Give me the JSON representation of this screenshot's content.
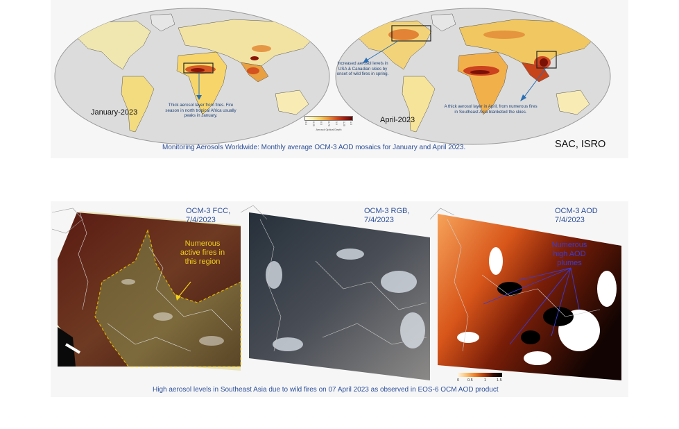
{
  "top_figure": {
    "map_labels": [
      "January-2023",
      "April-2023"
    ],
    "annotations": [
      "Thick aerosol layer from fires. Fire season in north tropical Africa usually peaks in January.",
      "Increased aerosol levels in USA & Canadian skies by onset of wild fires in spring.",
      "A thick aerosol layer in April, from numerous fires in Southeast Asia blanketed the skies."
    ],
    "colorbar": {
      "title": "Aerosol Optical Depth",
      "ticks": [
        "0.0",
        "0.25",
        "0.5",
        "0.75",
        "1.0",
        "1.25",
        "1.5"
      ]
    },
    "caption": "Monitoring Aerosols Worldwide: Monthly average OCM-3 AOD mosaics for January and April 2023.",
    "credit": "SAC, ISRO"
  },
  "bottom_figure": {
    "image_titles": [
      [
        "OCM-3 FCC,",
        "7/4/2023"
      ],
      [
        "OCM-3 RGB,",
        "7/4/2023"
      ],
      [
        "OCM-3 AOD",
        "7/4/2023"
      ]
    ],
    "fire_annotation": [
      "Numerous",
      "active fires in",
      "this region"
    ],
    "plume_annotation": [
      "Numerous",
      "high AOD",
      "plumes"
    ],
    "scalebar_ticks": [
      "0",
      "0.5",
      "1",
      "1.5"
    ],
    "caption": "High aerosol levels in Southeast Asia due to wild fires on 07 April 2023 as observed in EOS-6 OCM AOD product"
  },
  "colors": {
    "caption_blue": "#2c4f9a",
    "annotation_blue": "#22457a",
    "fire_yellow": "#f2d21a",
    "plume_blue": "#3b3bd6",
    "aod_high": "#a41c10"
  }
}
